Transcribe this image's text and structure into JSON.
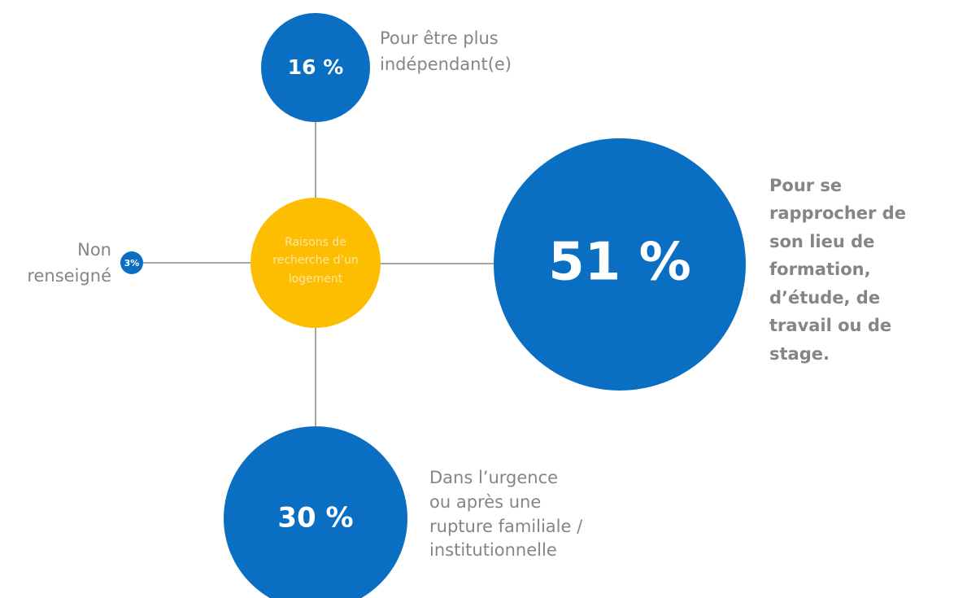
{
  "center": {
    "lines": [
      "Raisons de",
      "recherche d’un",
      "logement"
    ]
  },
  "nodes": [
    {
      "value": "16 %",
      "lines": [
        "Pour être plus",
        "indépendant(e)"
      ]
    },
    {
      "value": "51 %",
      "lines": [
        "Pour se",
        "rapprocher de",
        "son lieu de",
        "formation,",
        "d’étude, de",
        "travail ou de",
        "stage."
      ]
    },
    {
      "value": "30 %",
      "lines": [
        "Dans l’urgence",
        "ou après  une",
        "rupture familiale /",
        "institutionnelle"
      ]
    },
    {
      "value": "3%",
      "lines": [
        "Non",
        "renseigné"
      ]
    }
  ]
}
